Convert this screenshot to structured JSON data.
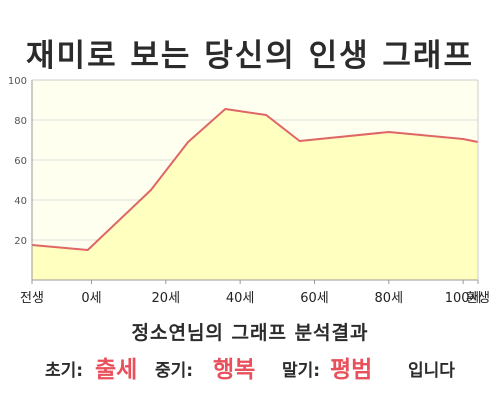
{
  "title": "재미로 보는 당신의 인생 그래프",
  "subtitle": "정소연님의 그래프 분석결과",
  "result": {
    "early_label": "초기:",
    "early_value": "출세",
    "mid_label": "중기:",
    "mid_value": "행복",
    "late_label": "말기:",
    "late_value": "평범",
    "ending": "입니다"
  },
  "colors": {
    "line": "#e06666",
    "fill": "#ffffc0",
    "plot_bg": "#fffff0",
    "accent": "#e8505b",
    "grid": "#dddddd"
  },
  "chart_data": {
    "type": "area",
    "title": "",
    "xlabel": "",
    "ylabel": "",
    "ylim": [
      0,
      100
    ],
    "xlim": [
      -16,
      104
    ],
    "yticks": [
      20,
      40,
      60,
      80,
      100
    ],
    "xticks": [
      {
        "value": -16,
        "label": "전생"
      },
      {
        "value": 0,
        "label": "0세"
      },
      {
        "value": 20,
        "label": "20세"
      },
      {
        "value": 40,
        "label": "40세"
      },
      {
        "value": 60,
        "label": "60세"
      },
      {
        "value": 80,
        "label": "80세"
      },
      {
        "value": 100,
        "label": "100세"
      },
      {
        "value": 104,
        "label": "환생"
      }
    ],
    "grid": true,
    "series": [
      {
        "x": [
          -16,
          -1,
          16,
          26,
          36,
          47,
          56,
          80,
          100,
          104
        ],
        "values": [
          17.5,
          15,
          45,
          69,
          85.5,
          82.5,
          69.5,
          74,
          70.5,
          69
        ]
      }
    ]
  }
}
